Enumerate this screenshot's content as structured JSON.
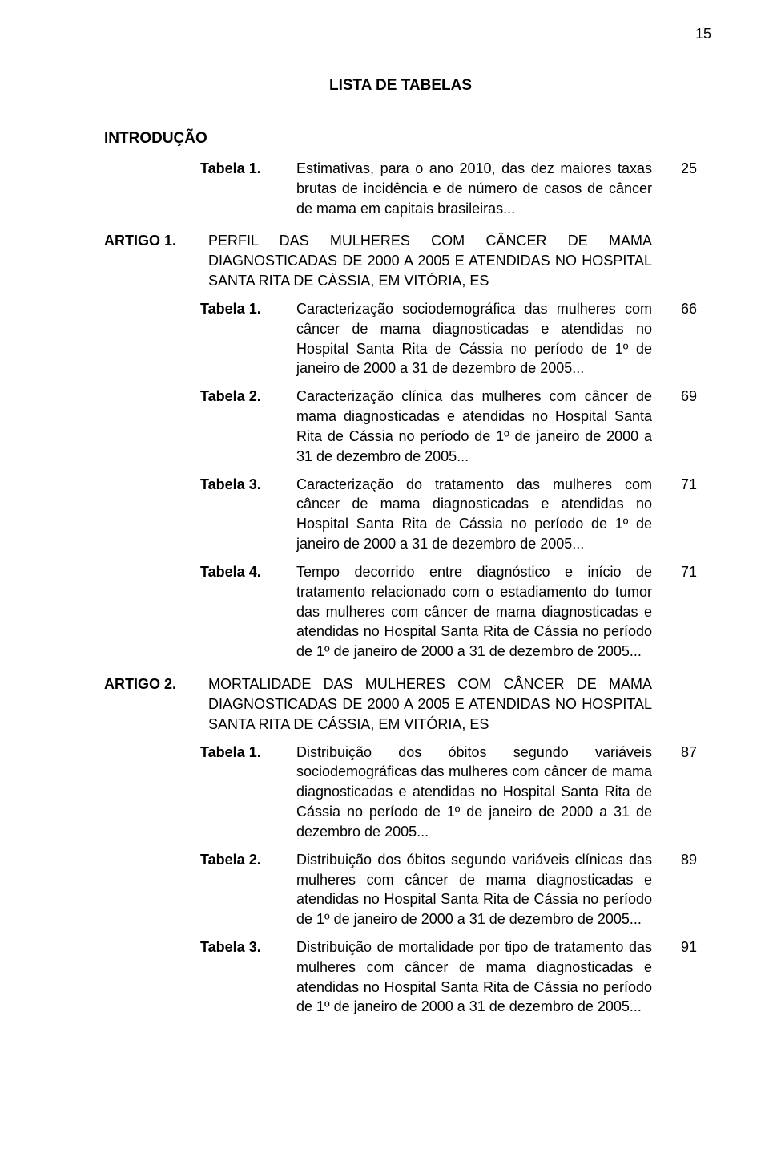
{
  "page_number": "15",
  "main_title": "LISTA DE TABELAS",
  "introducao": {
    "heading": "INTRODUÇÃO",
    "tabela1": {
      "label": "Tabela 1.",
      "text": "Estimativas, para o ano 2010, das dez maiores taxas brutas de incidência e de número de casos de câncer de mama em capitais brasileiras...",
      "page": "25"
    }
  },
  "artigo1": {
    "label": "ARTIGO 1.",
    "title": "PERFIL DAS MULHERES COM CÂNCER DE MAMA DIAGNOSTICADAS DE 2000 A 2005 E ATENDIDAS NO HOSPITAL SANTA RITA DE CÁSSIA, EM VITÓRIA, ES",
    "tabela1": {
      "label": "Tabela 1.",
      "text": "Caracterização sociodemográfica das mulheres com câncer de mama diagnosticadas e atendidas no Hospital Santa Rita de Cássia no período de 1º de janeiro de 2000 a 31 de dezembro de 2005...",
      "page": "66"
    },
    "tabela2": {
      "label": "Tabela 2.",
      "text": "Caracterização clínica das mulheres com câncer de mama diagnosticadas e atendidas no Hospital Santa Rita de Cássia no período de 1º de janeiro de 2000 a 31 de dezembro de 2005...",
      "page": "69"
    },
    "tabela3": {
      "label": "Tabela 3.",
      "text": "Caracterização do tratamento das mulheres com câncer de mama diagnosticadas e atendidas no Hospital Santa Rita de Cássia no período de 1º de janeiro de 2000 a 31 de dezembro de 2005...",
      "page": "71"
    },
    "tabela4": {
      "label": "Tabela 4.",
      "text": "Tempo decorrido entre diagnóstico e início de tratamento relacionado com o estadiamento do tumor das mulheres com câncer de mama diagnosticadas e atendidas no Hospital Santa Rita de Cássia no período de 1º de janeiro de 2000 a 31 de dezembro de 2005...",
      "page": "71"
    }
  },
  "artigo2": {
    "label": "ARTIGO 2.",
    "title": "MORTALIDADE DAS MULHERES COM CÂNCER DE MAMA DIAGNOSTICADAS DE 2000 A 2005 E ATENDIDAS NO HOSPITAL SANTA RITA DE CÁSSIA, EM VITÓRIA, ES",
    "tabela1": {
      "label": "Tabela 1.",
      "text": "Distribuição dos óbitos segundo variáveis sociodemográficas das mulheres com câncer de mama diagnosticadas e atendidas no Hospital Santa Rita de Cássia no período de 1º de janeiro de 2000 a 31 de dezembro de 2005...",
      "page": "87"
    },
    "tabela2": {
      "label": "Tabela 2.",
      "text": "Distribuição dos óbitos segundo variáveis clínicas das mulheres com câncer de mama diagnosticadas e atendidas no Hospital Santa Rita de Cássia no período de 1º de janeiro de 2000 a 31 de dezembro de 2005...",
      "page": "89"
    },
    "tabela3": {
      "label": "Tabela 3.",
      "text": "Distribuição de mortalidade por tipo de tratamento das mulheres com câncer de mama diagnosticadas e atendidas no Hospital Santa Rita de Cássia no período de 1º de janeiro de 2000 a 31 de dezembro de 2005...",
      "page": "91"
    }
  }
}
